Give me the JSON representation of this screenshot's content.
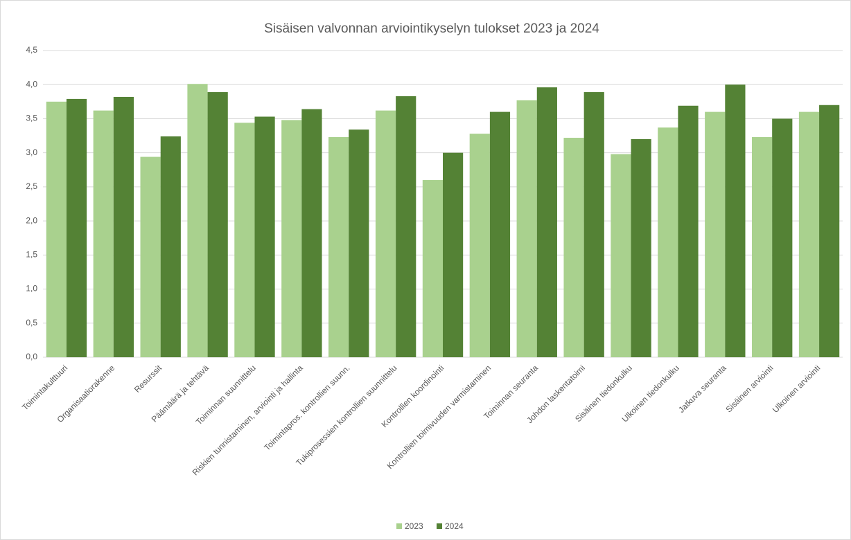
{
  "chart_data": {
    "type": "bar",
    "title": "Sisäisen valvonnan arviointikyselyn tulokset 2023 ja 2024",
    "categories": [
      "Toimintakulttuuri",
      "Organisaatiorakenne",
      "Resurssit",
      "Päämäärä ja tehtävä",
      "Toiminnan suunnittelu",
      "Riskien tunnistaminen, arviointi ja hallinta",
      "Toimintapros. kontrollien suunn.",
      "Tukiprosessien kontrollien suunnittelu",
      "Kontrollien koordinointi",
      "Kontrollien toimivuuden varmistaminen",
      "Toiminnan seuranta",
      "Johdon laskentatoimi",
      "Sisäinen tiedonkulku",
      "Ulkoinen tiedonkulku",
      "Jatkuva seuranta",
      "Sisäinen arviointi",
      "Ulkoinen arviointi"
    ],
    "series": [
      {
        "name": "2023",
        "color": "#a9d18e",
        "values": [
          3.75,
          3.62,
          2.94,
          4.01,
          3.44,
          3.48,
          3.23,
          3.62,
          2.6,
          3.28,
          3.77,
          3.22,
          2.98,
          3.37,
          3.6,
          3.23,
          3.6
        ]
      },
      {
        "name": "2024",
        "color": "#548235",
        "values": [
          3.79,
          3.82,
          3.24,
          3.89,
          3.53,
          3.64,
          3.34,
          3.83,
          3.0,
          3.6,
          3.96,
          3.89,
          3.2,
          3.69,
          4.0,
          3.5,
          3.7
        ]
      }
    ],
    "ylim": [
      0,
      4.5
    ],
    "yticks": [
      {
        "value": 0,
        "label": "0,0"
      },
      {
        "value": 0.5,
        "label": "0,5"
      },
      {
        "value": 1,
        "label": "1,0"
      },
      {
        "value": 1.5,
        "label": "1,5"
      },
      {
        "value": 2,
        "label": "2,0"
      },
      {
        "value": 2.5,
        "label": "2,5"
      },
      {
        "value": 3,
        "label": "3,0"
      },
      {
        "value": 3.5,
        "label": "3,5"
      },
      {
        "value": 4,
        "label": "4,0"
      },
      {
        "value": 4.5,
        "label": "4,5"
      }
    ],
    "grid": true,
    "legend": "bottom"
  }
}
